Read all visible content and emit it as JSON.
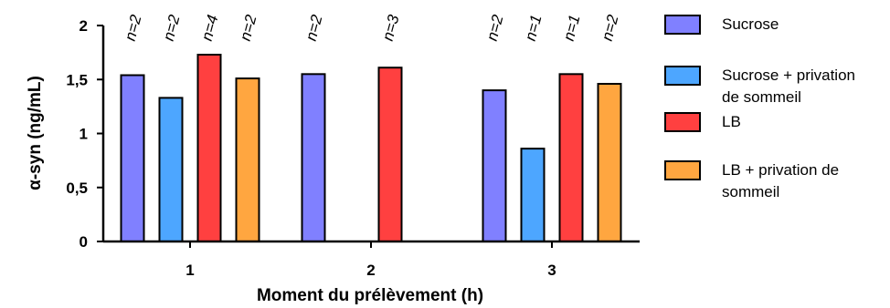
{
  "chart_data": {
    "type": "bar",
    "title": "",
    "xlabel": "Moment du prélèvement (h)",
    "ylabel": "α-syn (ng/mL)",
    "ylim": [
      0,
      2
    ],
    "yticks": [
      "0",
      "0,5",
      "1",
      "1,5",
      "2"
    ],
    "categories": [
      "1",
      "2",
      "3"
    ],
    "legend_position": "right",
    "grid": false,
    "series": [
      {
        "name": "Sucrose",
        "color": "#8080ff",
        "values": [
          1.54,
          1.55,
          1.4
        ],
        "n_labels": [
          "n=2",
          "n=2",
          "n=2"
        ]
      },
      {
        "name": "Sucrose + privation de sommeil",
        "legend_lines": [
          "Sucrose + privation",
          "de sommeil"
        ],
        "color": "#4da6ff",
        "values": [
          1.33,
          null,
          0.86
        ],
        "n_labels": [
          "n=2",
          "",
          "n=1"
        ]
      },
      {
        "name": "LB",
        "color": "#ff4040",
        "values": [
          1.73,
          1.61,
          1.55
        ],
        "n_labels": [
          "n=4",
          "n=3",
          "n=1"
        ]
      },
      {
        "name": "LB + privation de sommeil",
        "legend_lines": [
          "LB + privation de",
          "sommeil"
        ],
        "color": "#ffa640",
        "values": [
          1.51,
          null,
          1.46
        ],
        "n_labels": [
          "n=2",
          "",
          "n=2"
        ]
      }
    ]
  }
}
